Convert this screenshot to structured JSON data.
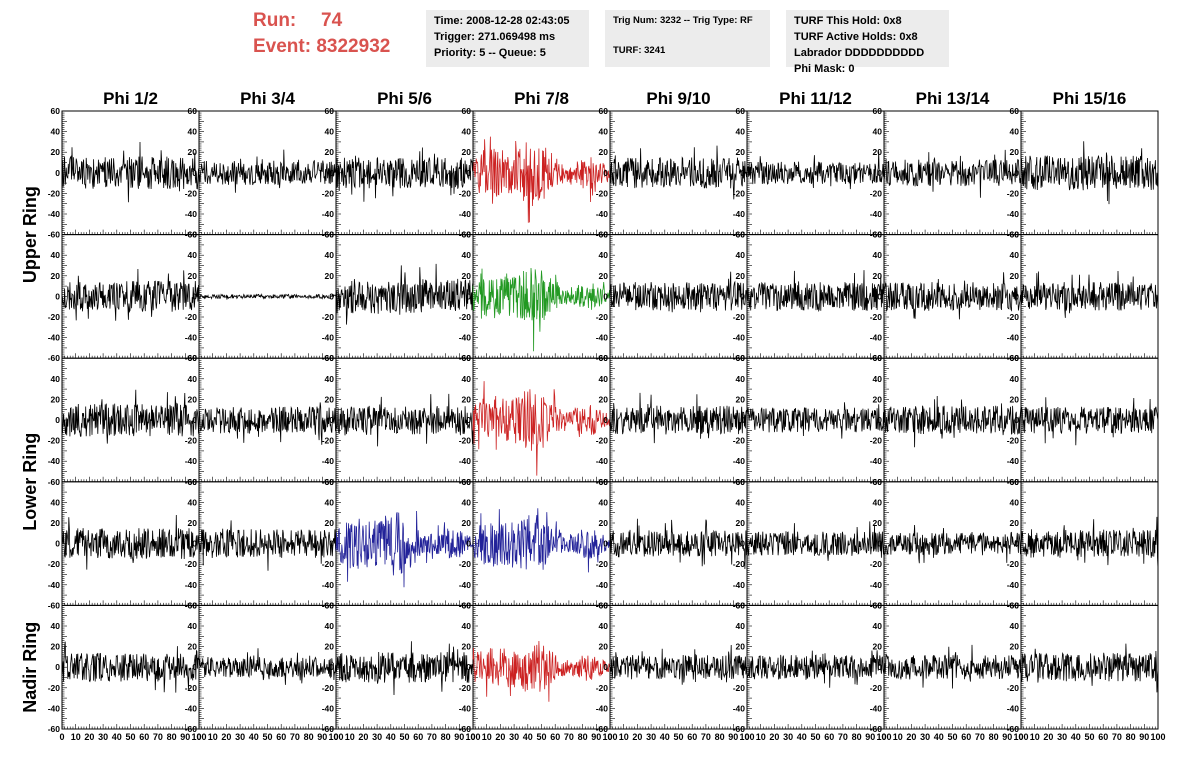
{
  "header": {
    "run_label": "Run:",
    "run_value": "74",
    "event_label": "Event:",
    "event_value": "8322932",
    "time_line": "Time: 2008-12-28 02:43:05",
    "trigger_line": "Trigger: 271.069498 ms",
    "priority_line": "Priority: 5 -- Queue: 5",
    "trig_line": "Trig Num: 3232 -- Trig Type: RF",
    "turf_line": "TURF: 3241",
    "turf_hold_line": "TURF This Hold: 0x8",
    "turf_active_line": "TURF Active Holds: 0x8",
    "labrador_line": "Labrador DDDDDDDDDD",
    "phi_mask_line": "Phi Mask: 0"
  },
  "chart_data": {
    "type": "line",
    "columns": [
      "Phi 1/2",
      "Phi 3/4",
      "Phi 5/6",
      "Phi 7/8",
      "Phi 9/10",
      "Phi 11/12",
      "Phi 13/14",
      "Phi 15/16"
    ],
    "ring_labels": [
      {
        "label": "Upper Ring",
        "rows": [
          0,
          1
        ]
      },
      {
        "label": "Lower Ring",
        "rows": [
          2,
          3
        ]
      },
      {
        "label": "Nadir Ring",
        "rows": [
          4,
          4
        ]
      }
    ],
    "xlim": [
      0,
      100
    ],
    "ylim": [
      -60,
      60
    ],
    "x_ticks": [
      "0",
      "10",
      "20",
      "30",
      "40",
      "50",
      "60",
      "70",
      "80",
      "90",
      "100"
    ],
    "y_ticks": [
      "60",
      "40",
      "20",
      "0",
      "-20",
      "-40",
      "-60"
    ],
    "colors": {
      "default": "#000000",
      "red": "#cc2222",
      "green": "#229922",
      "blue": "#222299"
    },
    "panels": [
      [
        {
          "color": "default",
          "amp": 16,
          "seed": 11
        },
        {
          "color": "default",
          "amp": 12,
          "seed": 12
        },
        {
          "color": "default",
          "amp": 15,
          "seed": 13
        },
        {
          "color": "red",
          "amp": 22,
          "seed": 14
        },
        {
          "color": "default",
          "amp": 15,
          "seed": 15
        },
        {
          "color": "default",
          "amp": 11,
          "seed": 16
        },
        {
          "color": "default",
          "amp": 13,
          "seed": 17
        },
        {
          "color": "default",
          "amp": 17,
          "seed": 18
        }
      ],
      [
        {
          "color": "default",
          "amp": 15,
          "seed": 21
        },
        {
          "color": "default",
          "amp": 2,
          "seed": 22
        },
        {
          "color": "default",
          "amp": 17,
          "seed": 23
        },
        {
          "color": "green",
          "amp": 19,
          "seed": 24
        },
        {
          "color": "default",
          "amp": 14,
          "seed": 25
        },
        {
          "color": "default",
          "amp": 14,
          "seed": 26
        },
        {
          "color": "default",
          "amp": 14,
          "seed": 27
        },
        {
          "color": "default",
          "amp": 14,
          "seed": 28
        }
      ],
      [
        {
          "color": "default",
          "amp": 16,
          "seed": 31
        },
        {
          "color": "default",
          "amp": 13,
          "seed": 32
        },
        {
          "color": "default",
          "amp": 14,
          "seed": 33
        },
        {
          "color": "red",
          "amp": 21,
          "seed": 34
        },
        {
          "color": "default",
          "amp": 14,
          "seed": 35
        },
        {
          "color": "default",
          "amp": 12,
          "seed": 36
        },
        {
          "color": "default",
          "amp": 14,
          "seed": 37
        },
        {
          "color": "default",
          "amp": 13,
          "seed": 38
        }
      ],
      [
        {
          "color": "default",
          "amp": 15,
          "seed": 41
        },
        {
          "color": "default",
          "amp": 14,
          "seed": 42
        },
        {
          "color": "blue",
          "amp": 22,
          "seed": 43
        },
        {
          "color": "blue",
          "amp": 20,
          "seed": 44
        },
        {
          "color": "default",
          "amp": 13,
          "seed": 45
        },
        {
          "color": "default",
          "amp": 12,
          "seed": 46
        },
        {
          "color": "default",
          "amp": 11,
          "seed": 47
        },
        {
          "color": "default",
          "amp": 14,
          "seed": 48
        }
      ],
      [
        {
          "color": "default",
          "amp": 14,
          "seed": 51
        },
        {
          "color": "default",
          "amp": 10,
          "seed": 52
        },
        {
          "color": "default",
          "amp": 15,
          "seed": 53
        },
        {
          "color": "red",
          "amp": 18,
          "seed": 54
        },
        {
          "color": "default",
          "amp": 12,
          "seed": 55
        },
        {
          "color": "default",
          "amp": 12,
          "seed": 56
        },
        {
          "color": "default",
          "amp": 12,
          "seed": 57
        },
        {
          "color": "default",
          "amp": 14,
          "seed": 58
        }
      ]
    ]
  }
}
